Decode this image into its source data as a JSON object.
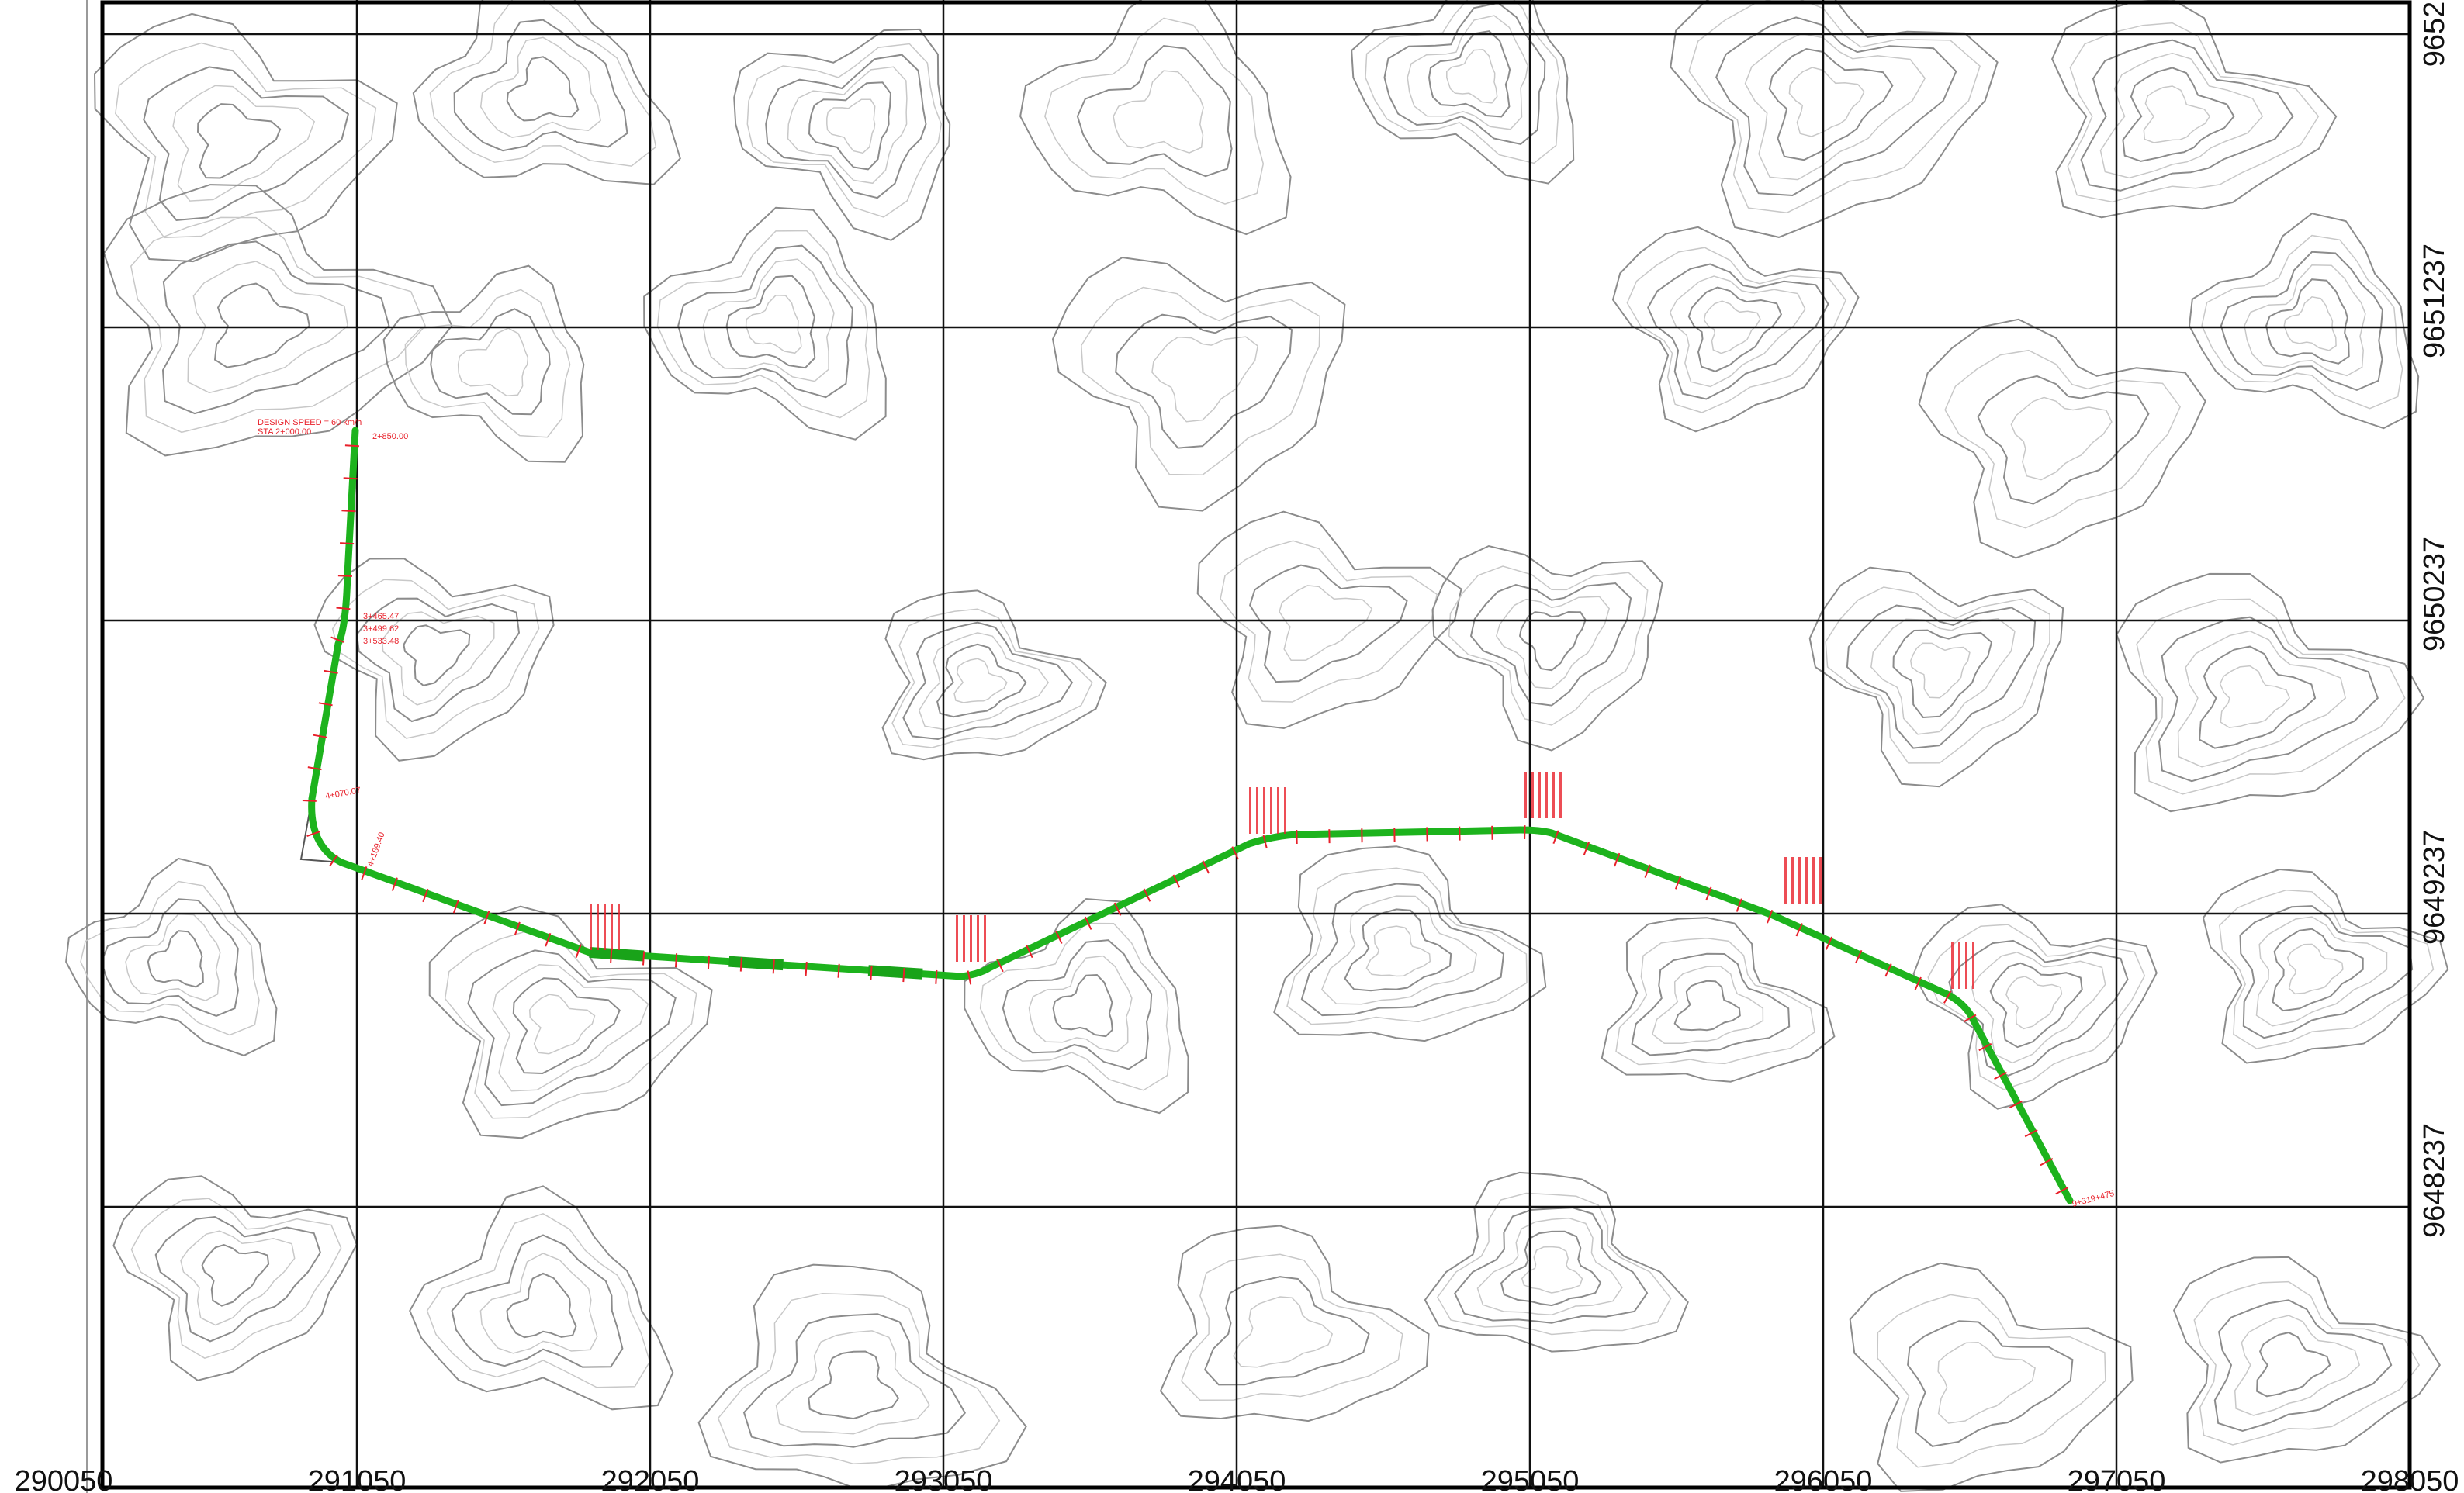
{
  "map": {
    "x_ticks": [
      "290050",
      "291050",
      "292050",
      "293050",
      "294050",
      "295050",
      "296050",
      "297050",
      "298050"
    ],
    "y_ticks": [
      "9652",
      "9651237",
      "9650237",
      "9649237",
      "9648237"
    ],
    "annotations": {
      "design_speed": "DESIGN SPEED = 60 km/h",
      "start_station": "STA 2+000.00",
      "start_label": "2+850.00",
      "pc1": "3+465.47",
      "pi1": "3+499.62",
      "pt1": "3+533.48",
      "pc2": "4+070.07",
      "pt2": "4+189.40",
      "end_label": "9+319+475"
    },
    "colors": {
      "alignment": "#1db31d",
      "annotation": "#e8202a",
      "grid": "#111111",
      "contour": "#8c8c8c",
      "contour_light": "#c8c8c8"
    }
  }
}
